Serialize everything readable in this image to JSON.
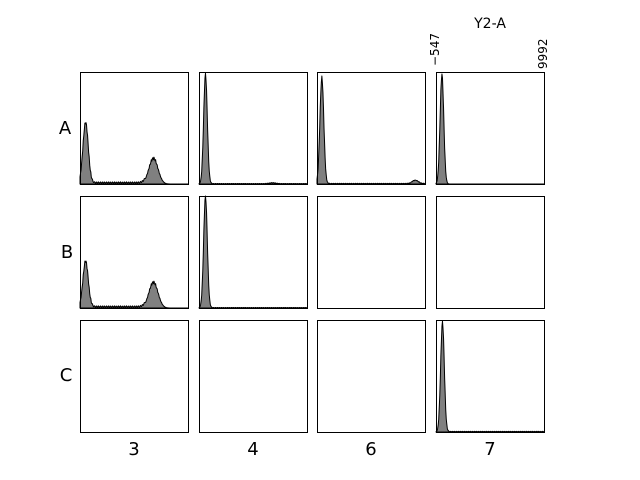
{
  "chart_data": {
    "type": "histogram-grid",
    "channel_label": "Y2-A",
    "x_range": [
      -547,
      9992
    ],
    "x_tick_labels": [
      "−547",
      "9992"
    ],
    "rows": [
      "A",
      "B",
      "C"
    ],
    "columns": [
      "3",
      "4",
      "6",
      "7"
    ],
    "fill_color": "#808080",
    "panels": [
      {
        "row": "A",
        "col": "3",
        "has_data": true,
        "peaks": [
          {
            "center": 0.52,
            "width": 0.25,
            "height": 0.55
          },
          {
            "center": 6.8,
            "width": 0.42,
            "height": 0.23
          }
        ],
        "tail": [
          {
            "from": 1.0,
            "to": 6.0,
            "level": 0.012
          }
        ]
      },
      {
        "row": "A",
        "col": "4",
        "has_data": true,
        "peaks": [
          {
            "center": 0.6,
            "width": 0.17,
            "height": 0.98
          },
          {
            "center": 6.8,
            "width": 0.3,
            "height": 0.008
          }
        ],
        "tail": [
          {
            "from": 1.0,
            "to": 10.0,
            "level": 0.003
          }
        ]
      },
      {
        "row": "A",
        "col": "6",
        "has_data": true,
        "peaks": [
          {
            "center": 0.45,
            "width": 0.18,
            "height": 0.95
          },
          {
            "center": 9.1,
            "width": 0.28,
            "height": 0.03
          }
        ],
        "tail": [
          {
            "from": 1.0,
            "to": 10.0,
            "level": 0.004
          }
        ]
      },
      {
        "row": "A",
        "col": "7",
        "has_data": true,
        "peaks": [
          {
            "center": 0.55,
            "width": 0.17,
            "height": 0.98
          }
        ],
        "tail": []
      },
      {
        "row": "B",
        "col": "3",
        "has_data": true,
        "peaks": [
          {
            "center": 0.52,
            "width": 0.25,
            "height": 0.42
          },
          {
            "center": 6.8,
            "width": 0.42,
            "height": 0.23
          }
        ],
        "tail": [
          {
            "from": 1.0,
            "to": 6.0,
            "level": 0.012
          }
        ]
      },
      {
        "row": "B",
        "col": "4",
        "has_data": true,
        "peaks": [
          {
            "center": 0.6,
            "width": 0.17,
            "height": 1.0
          }
        ],
        "tail": [
          {
            "from": 1.0,
            "to": 10.0,
            "level": 0.003
          }
        ]
      },
      {
        "row": "B",
        "col": "6",
        "has_data": false,
        "peaks": [],
        "tail": []
      },
      {
        "row": "B",
        "col": "7",
        "has_data": false,
        "peaks": [],
        "tail": []
      },
      {
        "row": "C",
        "col": "3",
        "has_data": false,
        "peaks": [],
        "tail": []
      },
      {
        "row": "C",
        "col": "4",
        "has_data": false,
        "peaks": [],
        "tail": []
      },
      {
        "row": "C",
        "col": "6",
        "has_data": false,
        "peaks": [],
        "tail": []
      },
      {
        "row": "C",
        "col": "7",
        "has_data": true,
        "peaks": [
          {
            "center": 0.6,
            "width": 0.17,
            "height": 0.98
          }
        ],
        "tail": [
          {
            "from": 1.0,
            "to": 10.0,
            "level": 0.004
          }
        ]
      }
    ]
  }
}
